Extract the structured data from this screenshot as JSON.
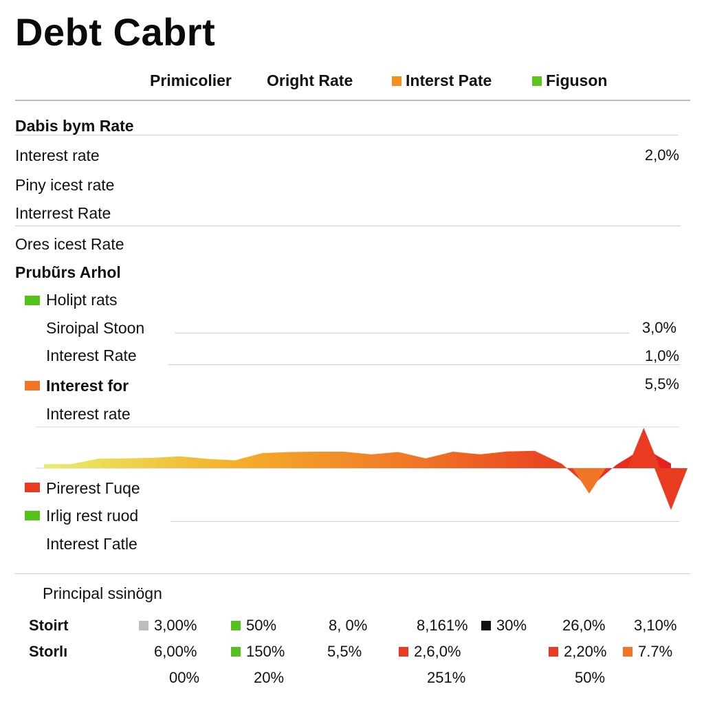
{
  "title": "Debt  Cabrt",
  "legend": [
    {
      "label": "Primicolier",
      "color": null
    },
    {
      "label": "Oright Rate",
      "color": null
    },
    {
      "label": "Interst Pate",
      "color": "#f4901e"
    },
    {
      "label": "Figuson",
      "color": "#5cc41c"
    }
  ],
  "rows": {
    "r1": "Dabis bym Rate",
    "r2": "Interest rate",
    "r2_value": "2,0%",
    "r3": "Piny icest rate",
    "r4": "Interrest Rate",
    "r5": "Ores icest Rate",
    "r6": "Prubũrs Arhol",
    "r7": "Holipt rats",
    "r8": "Siroipal Stoon",
    "r8_value": "3,0%",
    "r9": "Interest Rate",
    "r9_value": "1,0%",
    "r10": "Interest for",
    "r10_value": "5,5%",
    "r11": "Interest rate",
    "r12": "Pirerest Γuqe",
    "r13": "Irlig rest ruod",
    "r14": "Interest Γatle"
  },
  "colors": {
    "green": "#55c21b",
    "orange": "#f07526",
    "red": "#e83b1f",
    "gray": "#bdbdbd",
    "black": "#111111",
    "yellow": "#e8ee6a"
  },
  "table": {
    "title": "Principal ssinögn",
    "row_labels": [
      "Stoirt",
      "Storlı"
    ],
    "row1": [
      {
        "text": "3,00%",
        "swatch": "gray"
      },
      {
        "text": "50%",
        "swatch": "green"
      },
      {
        "text": "8, 0%",
        "swatch": null
      },
      {
        "text": "8,161%",
        "swatch": null
      },
      {
        "text": "30%",
        "swatch": "black"
      },
      {
        "text": "26,0%",
        "swatch": null
      },
      {
        "text": "3,10%",
        "swatch": null
      }
    ],
    "row2": [
      {
        "text": "6,00%",
        "swatch": null
      },
      {
        "text": "150%",
        "swatch": "green"
      },
      {
        "text": "5,5%",
        "swatch": null
      },
      {
        "text": "2,6,0%",
        "swatch": "red"
      },
      {
        "text": "2,20%",
        "swatch": "red"
      },
      {
        "text": "7.7%",
        "swatch": "orange"
      }
    ],
    "row3": [
      "00%",
      "20%",
      "251%",
      "50%"
    ]
  },
  "chart_data": {
    "type": "area",
    "title": "",
    "xlabel": "",
    "ylabel": "",
    "x": [
      0,
      1,
      2,
      3,
      4,
      5,
      6,
      7,
      8,
      9,
      10,
      11,
      12,
      13,
      14,
      15,
      16,
      17,
      18,
      19,
      20,
      21,
      22,
      23
    ],
    "values": [
      1.4,
      1.4,
      3.3,
      3.4,
      3.6,
      4.1,
      3.2,
      2.7,
      5.2,
      5.6,
      5.7,
      5.7,
      4.8,
      5.6,
      3.4,
      5.7,
      4.8,
      5.8,
      6.0,
      1.5,
      -6.8,
      1.2,
      7.0,
      1.6
    ],
    "spikes": [
      {
        "x": 22,
        "value": 14.0
      },
      {
        "x": 20,
        "value": -8.8
      },
      {
        "x": 23,
        "value": -14.5
      }
    ],
    "color_scale": [
      "#e8ee6a",
      "#f4b02a",
      "#f07526",
      "#e83b1f"
    ],
    "grid": true
  }
}
